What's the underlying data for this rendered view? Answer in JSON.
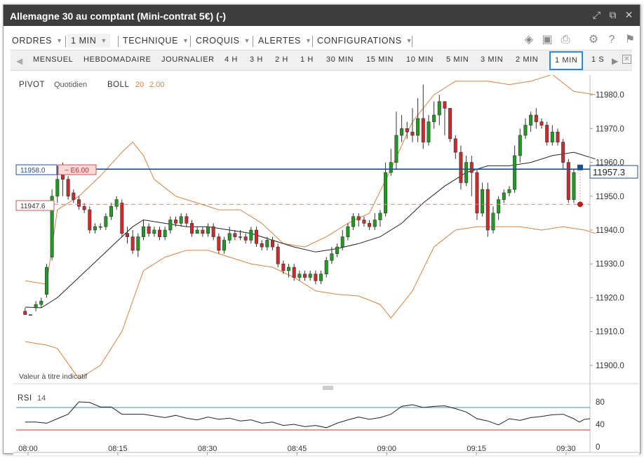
{
  "window": {
    "title": "Allemagne 30 au comptant (Mini-contrat 5€) (-)",
    "title_icons": [
      "expand-icon",
      "popout-icon",
      "close-icon"
    ]
  },
  "menu": {
    "items": [
      {
        "label": "ORDRES",
        "name": "menu-orders"
      },
      {
        "label": "1 MIN",
        "name": "menu-interval",
        "active": true
      },
      {
        "label": "TECHNIQUE",
        "name": "menu-technical"
      },
      {
        "label": "CROQUIS",
        "name": "menu-sketch"
      },
      {
        "label": "ALERTES",
        "name": "menu-alerts"
      },
      {
        "label": "CONFIGURATIONS",
        "name": "menu-configurations"
      }
    ],
    "icons": [
      "layers-icon",
      "image-icon",
      "print-icon",
      "gear-icon",
      "help-icon",
      "flag-icon"
    ]
  },
  "timeframes": {
    "items": [
      "MENSUEL",
      "HEBDOMADAIRE",
      "JOURNALIER",
      "4 H",
      "3 H",
      "2 H",
      "1 H",
      "30 MIN",
      "15 MIN",
      "10 MIN",
      "5 MIN",
      "3 MIN",
      "2 MIN",
      "1 MIN",
      "1 S"
    ],
    "active": "1 MIN"
  },
  "chart_data": {
    "type": "candlestick",
    "indicators": {
      "pivot": {
        "label": "PIVOT",
        "param": "Quotidien"
      },
      "boll": {
        "label": "BOLL",
        "params": [
          "20",
          "2.00"
        ]
      }
    },
    "disclaimer": "Valeur à titre indicatif",
    "ylim": [
      11895,
      11985
    ],
    "y_ticks": [
      "11900.0",
      "11910.0",
      "11920.0",
      "11930.0",
      "11940.0",
      "11950.0",
      "11960.0",
      "11970.0",
      "11980.0"
    ],
    "x_ticks": [
      "08:00",
      "08:15",
      "08:30",
      "08:45",
      "09:00",
      "09:15",
      "09:30"
    ],
    "x_start": "07:58",
    "x_end": "09:34",
    "last_price": "11957.3",
    "position": {
      "entry": "11958.0",
      "pnl": "− E6.00",
      "stop_level": "11947.6"
    },
    "stop_value": 11947.6,
    "candles": [
      [
        11916,
        11915,
        11917,
        11915
      ],
      [
        11915,
        11915,
        11915,
        11915
      ],
      [
        11917,
        11918,
        11919,
        11916
      ],
      [
        11918,
        11919,
        11920,
        11917
      ],
      [
        11921,
        11929,
        11930,
        11920
      ],
      [
        11932,
        11950,
        11952,
        11931
      ],
      [
        11950,
        11955,
        11959,
        11948
      ],
      [
        11957,
        11955,
        11960,
        11950
      ],
      [
        11955,
        11950,
        11956,
        11949
      ],
      [
        11951,
        11949,
        11952,
        11948
      ],
      [
        11949,
        11947,
        11950,
        11946
      ],
      [
        11947,
        11946,
        11948,
        11945
      ],
      [
        11946,
        11940,
        11947,
        11939
      ],
      [
        11940,
        11941,
        11942,
        11939
      ],
      [
        11941,
        11941,
        11942,
        11940
      ],
      [
        11941,
        11944,
        11945,
        11940
      ],
      [
        11944,
        11947,
        11948,
        11943
      ],
      [
        11947,
        11949,
        11950,
        11946
      ],
      [
        11948,
        11939,
        11949,
        11938
      ],
      [
        11939,
        11938,
        11941,
        11936
      ],
      [
        11938,
        11934,
        11940,
        11933
      ],
      [
        11934,
        11938,
        11939,
        11932
      ],
      [
        11938,
        11941,
        11943,
        11937
      ],
      [
        11941,
        11939,
        11942,
        11938
      ],
      [
        11939,
        11940,
        11941,
        11938
      ],
      [
        11940,
        11938,
        11941,
        11937
      ],
      [
        11938,
        11940,
        11941,
        11937
      ],
      [
        11940,
        11943,
        11944,
        11939
      ],
      [
        11943,
        11942,
        11944,
        11941
      ],
      [
        11942,
        11944,
        11945,
        11941
      ],
      [
        11944,
        11942,
        11945,
        11941
      ],
      [
        11942,
        11939,
        11943,
        11938
      ],
      [
        11939,
        11940,
        11941,
        11939
      ],
      [
        11940,
        11939,
        11941,
        11938
      ],
      [
        11939,
        11941,
        11942,
        11938
      ],
      [
        11941,
        11938,
        11942,
        11937
      ],
      [
        11938,
        11934,
        11939,
        11933
      ],
      [
        11934,
        11937,
        11938,
        11933
      ],
      [
        11937,
        11939,
        11941,
        11936
      ],
      [
        11939,
        11938,
        11940,
        11937
      ],
      [
        11938,
        11938,
        11940,
        11937
      ],
      [
        11938,
        11937,
        11939,
        11936
      ],
      [
        11937,
        11940,
        11941,
        11936
      ],
      [
        11940,
        11936,
        11941,
        11935
      ],
      [
        11936,
        11935,
        11937,
        11934
      ],
      [
        11935,
        11937,
        11938,
        11934
      ],
      [
        11937,
        11935,
        11938,
        11934
      ],
      [
        11935,
        11930,
        11936,
        11929
      ],
      [
        11930,
        11928,
        11931,
        11927
      ],
      [
        11928,
        11929,
        11930,
        11926
      ],
      [
        11929,
        11926,
        11930,
        11925
      ],
      [
        11926,
        11927,
        11928,
        11925
      ],
      [
        11927,
        11926,
        11928,
        11925
      ],
      [
        11926,
        11927,
        11928,
        11925
      ],
      [
        11927,
        11925,
        11928,
        11924
      ],
      [
        11925,
        11927,
        11928,
        11924
      ],
      [
        11927,
        11931,
        11932,
        11926
      ],
      [
        11931,
        11933,
        11935,
        11930
      ],
      [
        11933,
        11935,
        11936,
        11932
      ],
      [
        11935,
        11938,
        11940,
        11934
      ],
      [
        11938,
        11941,
        11942,
        11937
      ],
      [
        11941,
        11944,
        11945,
        11940
      ],
      [
        11944,
        11943,
        11945,
        11941
      ],
      [
        11943,
        11942,
        11944,
        11941
      ],
      [
        11942,
        11941,
        11943,
        11940
      ],
      [
        11941,
        11943,
        11945,
        11940
      ],
      [
        11943,
        11945,
        11946,
        11941
      ],
      [
        11945,
        11957,
        11960,
        11944
      ],
      [
        11957,
        11960,
        11964,
        11956
      ],
      [
        11960,
        11968,
        11975,
        11958
      ],
      [
        11968,
        11970,
        11974,
        11966
      ],
      [
        11970,
        11969,
        11972,
        11967
      ],
      [
        11969,
        11968,
        11976,
        11966
      ],
      [
        11968,
        11973,
        11979,
        11966
      ],
      [
        11973,
        11966,
        11983,
        11964
      ],
      [
        11966,
        11972,
        11974,
        11965
      ],
      [
        11972,
        11974,
        11978,
        11970
      ],
      [
        11974,
        11978,
        11980,
        11971
      ],
      [
        11978,
        11976,
        11978,
        11968
      ],
      [
        11976,
        11967,
        11971,
        11966
      ],
      [
        11967,
        11963,
        11968,
        11961
      ],
      [
        11963,
        11954,
        11965,
        11952
      ],
      [
        11954,
        11960,
        11962,
        11953
      ],
      [
        11960,
        11957,
        11962,
        11950
      ],
      [
        11957,
        11945,
        11958,
        11943
      ],
      [
        11945,
        11952,
        11954,
        11944
      ],
      [
        11952,
        11940,
        11954,
        11938
      ],
      [
        11940,
        11945,
        11947,
        11939
      ],
      [
        11945,
        11949,
        11950,
        11943
      ],
      [
        11949,
        11951,
        11952,
        11948
      ],
      [
        11951,
        11952,
        11953,
        11950
      ],
      [
        11952,
        11962,
        11965,
        11951
      ],
      [
        11962,
        11968,
        11970,
        11960
      ],
      [
        11968,
        11971,
        11973,
        11967
      ],
      [
        11971,
        11974,
        11975,
        11969
      ],
      [
        11974,
        11972,
        11976,
        11970
      ],
      [
        11972,
        11971,
        11973,
        11970
      ],
      [
        11971,
        11966,
        11972,
        11965
      ],
      [
        11966,
        11969,
        11971,
        11965
      ],
      [
        11969,
        11966,
        11970,
        11965
      ],
      [
        11966,
        11960,
        11967,
        11958
      ],
      [
        11960,
        11949,
        11961,
        11948
      ],
      [
        11949,
        11957,
        11958,
        11948
      ]
    ],
    "moving_average": [
      [
        0,
        11917.2
      ],
      [
        3,
        11917.0
      ],
      [
        6,
        11920
      ],
      [
        10,
        11926
      ],
      [
        14,
        11932
      ],
      [
        18,
        11938
      ],
      [
        20,
        11941
      ],
      [
        22,
        11943
      ],
      [
        26,
        11942
      ],
      [
        30,
        11941
      ],
      [
        34,
        11941
      ],
      [
        38,
        11940
      ],
      [
        42,
        11939
      ],
      [
        46,
        11937
      ],
      [
        50,
        11935
      ],
      [
        54,
        11933.5
      ],
      [
        58,
        11934.5
      ],
      [
        62,
        11936
      ],
      [
        66,
        11938
      ],
      [
        70,
        11942
      ],
      [
        74,
        11948
      ],
      [
        78,
        11953
      ],
      [
        82,
        11957
      ],
      [
        86,
        11959
      ],
      [
        90,
        11959
      ],
      [
        94,
        11960
      ],
      [
        98,
        11962
      ],
      [
        102,
        11963
      ],
      [
        106,
        11961
      ]
    ],
    "bollinger_upper": [
      [
        0,
        11925
      ],
      [
        4,
        11924
      ],
      [
        6,
        11946
      ],
      [
        10,
        11950
      ],
      [
        14,
        11956
      ],
      [
        18,
        11963
      ],
      [
        20,
        11966
      ],
      [
        22,
        11962
      ],
      [
        24,
        11955
      ],
      [
        28,
        11950
      ],
      [
        32,
        11948
      ],
      [
        36,
        11946
      ],
      [
        40,
        11946
      ],
      [
        44,
        11942
      ],
      [
        48,
        11936
      ],
      [
        52,
        11935
      ],
      [
        56,
        11938
      ],
      [
        60,
        11942
      ],
      [
        64,
        11945
      ],
      [
        68,
        11958
      ],
      [
        72,
        11972
      ],
      [
        76,
        11980
      ],
      [
        80,
        11984
      ],
      [
        86,
        11984
      ],
      [
        90,
        11983
      ],
      [
        94,
        11984
      ],
      [
        98,
        11986
      ],
      [
        102,
        11981
      ],
      [
        106,
        11980
      ]
    ],
    "bollinger_lower": [
      [
        0,
        11907
      ],
      [
        4,
        11906
      ],
      [
        6,
        11905
      ],
      [
        10,
        11896
      ],
      [
        14,
        11900
      ],
      [
        18,
        11910
      ],
      [
        22,
        11928
      ],
      [
        26,
        11932
      ],
      [
        30,
        11934
      ],
      [
        34,
        11934
      ],
      [
        38,
        11932
      ],
      [
        42,
        11930
      ],
      [
        46,
        11929
      ],
      [
        50,
        11926
      ],
      [
        54,
        11922
      ],
      [
        58,
        11921
      ],
      [
        62,
        11920.5
      ],
      [
        66,
        11918
      ],
      [
        68,
        11914
      ],
      [
        72,
        11922
      ],
      [
        76,
        11935
      ],
      [
        80,
        11940
      ],
      [
        84,
        11941
      ],
      [
        88,
        11941
      ],
      [
        92,
        11941
      ],
      [
        96,
        11940
      ],
      [
        100,
        11941
      ],
      [
        104,
        11940
      ],
      [
        106,
        11939
      ]
    ],
    "rsi": {
      "label": "RSI",
      "period": "14",
      "ylim": [
        0,
        100
      ],
      "y_ticks": [
        "80",
        "40",
        "0"
      ],
      "levels": [
        70,
        30
      ],
      "values": [
        [
          0,
          44
        ],
        [
          2,
          44
        ],
        [
          4,
          42
        ],
        [
          6,
          50
        ],
        [
          8,
          58
        ],
        [
          10,
          80
        ],
        [
          12,
          79
        ],
        [
          14,
          71
        ],
        [
          16,
          71
        ],
        [
          18,
          58
        ],
        [
          20,
          58
        ],
        [
          22,
          58
        ],
        [
          24,
          55
        ],
        [
          26,
          52
        ],
        [
          28,
          56
        ],
        [
          30,
          51
        ],
        [
          32,
          48
        ],
        [
          34,
          53
        ],
        [
          36,
          49
        ],
        [
          38,
          51
        ],
        [
          40,
          46
        ],
        [
          42,
          48
        ],
        [
          44,
          42
        ],
        [
          46,
          44
        ],
        [
          48,
          38
        ],
        [
          50,
          40
        ],
        [
          52,
          36
        ],
        [
          54,
          38
        ],
        [
          56,
          34
        ],
        [
          58,
          42
        ],
        [
          60,
          48
        ],
        [
          62,
          53
        ],
        [
          64,
          49
        ],
        [
          66,
          52
        ],
        [
          68,
          58
        ],
        [
          70,
          72
        ],
        [
          72,
          75
        ],
        [
          74,
          70
        ],
        [
          76,
          72
        ],
        [
          78,
          73
        ],
        [
          80,
          68
        ],
        [
          82,
          62
        ],
        [
          84,
          50
        ],
        [
          86,
          46
        ],
        [
          88,
          39
        ],
        [
          90,
          50
        ],
        [
          92,
          47
        ],
        [
          94,
          52
        ],
        [
          96,
          54
        ],
        [
          98,
          57
        ],
        [
          100,
          58
        ],
        [
          102,
          50
        ],
        [
          103,
          44
        ],
        [
          104,
          49
        ],
        [
          105,
          50
        ]
      ]
    }
  }
}
